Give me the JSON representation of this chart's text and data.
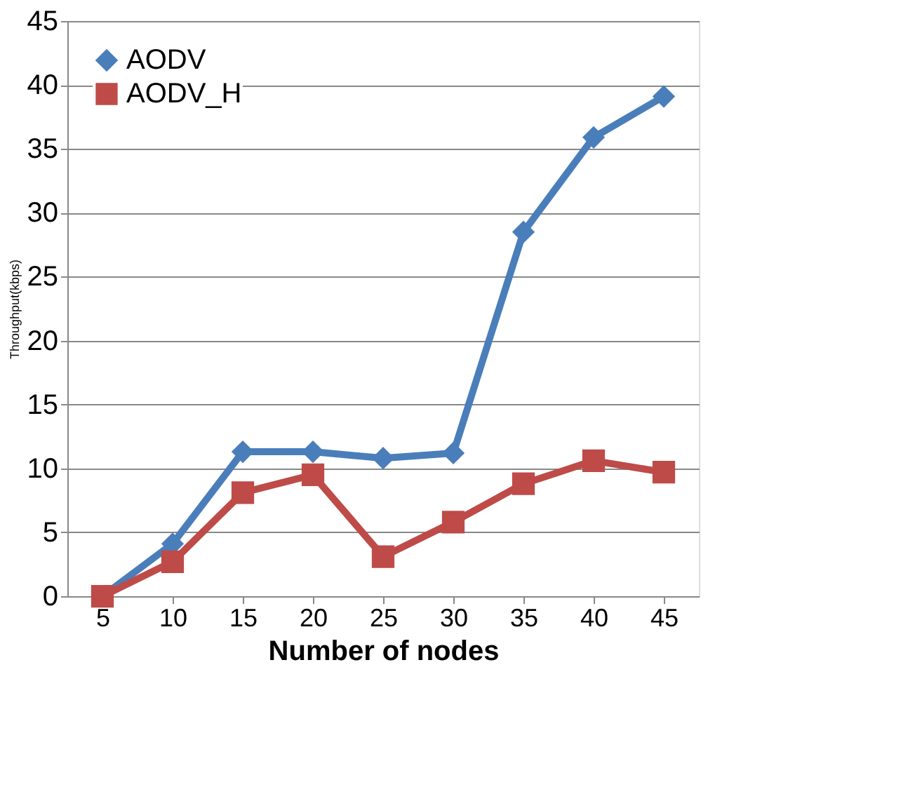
{
  "chart_data": {
    "type": "line",
    "xlabel": "Number of nodes",
    "ylabel": "Throughput(kbps)",
    "categories": [
      "5",
      "10",
      "15",
      "20",
      "25",
      "30",
      "35",
      "40",
      "45"
    ],
    "series": [
      {
        "name": "AODV",
        "color": "#4a7ebb",
        "marker": "diamond",
        "values": [
          0,
          4.1,
          11.3,
          11.3,
          10.8,
          11.2,
          28.5,
          35.9,
          39.1
        ]
      },
      {
        "name": "AODV_H",
        "color": "#be4b48",
        "marker": "square",
        "values": [
          0,
          2.7,
          8.1,
          9.5,
          3.1,
          5.8,
          8.8,
          10.6,
          9.7
        ]
      }
    ],
    "ylim": [
      0,
      45
    ],
    "yticks": [
      0,
      5,
      10,
      15,
      20,
      25,
      30,
      35,
      40,
      45
    ],
    "grid": "y",
    "legend": "top left",
    "line_style": "solid"
  }
}
